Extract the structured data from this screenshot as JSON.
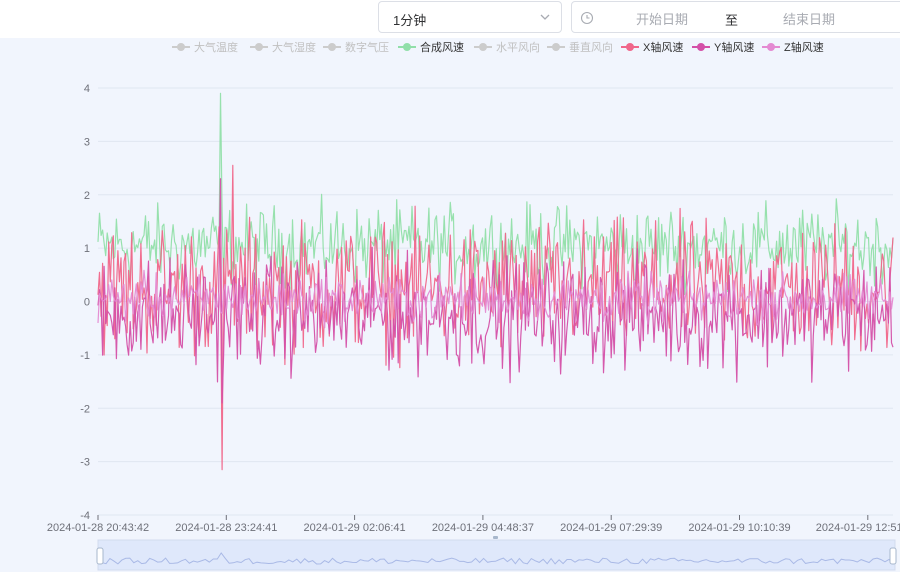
{
  "toolbar": {
    "interval_value": "1分钟",
    "range_start_placeholder": "开始日期",
    "range_separator": "至",
    "range_end_placeholder": "结束日期",
    "chevron_icon": "chevron-down-icon",
    "clock_icon": "clock-icon"
  },
  "chart_data": {
    "type": "line",
    "title": "",
    "xlabel": "",
    "ylabel": "",
    "ylim": [
      -4,
      4
    ],
    "y_ticks": [
      4,
      3,
      2,
      1,
      0,
      -1,
      -2,
      -3,
      -4
    ],
    "x_tick_labels": [
      "2024-01-28 20:43:42",
      "2024-01-28 23:24:41",
      "2024-01-29 02:06:41",
      "2024-01-29 04:48:37",
      "2024-01-29 07:29:39",
      "2024-01-29 10:10:39",
      "2024-01-29 12:51"
    ],
    "x_range": [
      "2024-01-28 20:43:42",
      "2024-01-29 12:51"
    ],
    "grid": true,
    "legend_position": "top",
    "legend": [
      {
        "name": "大气温度",
        "active": false,
        "color": "#cccccc"
      },
      {
        "name": "大气湿度",
        "active": false,
        "color": "#cccccc"
      },
      {
        "name": "数字气压",
        "active": false,
        "color": "#cccccc"
      },
      {
        "name": "合成风速",
        "active": true,
        "color": "#91dfa9"
      },
      {
        "name": "水平风向",
        "active": false,
        "color": "#cccccc"
      },
      {
        "name": "垂直风向",
        "active": false,
        "color": "#cccccc"
      },
      {
        "name": "X轴风速",
        "active": true,
        "color": "#f0668a"
      },
      {
        "name": "Y轴风速",
        "active": true,
        "color": "#d450a8"
      },
      {
        "name": "Z轴风速",
        "active": true,
        "color": "#e48ad2"
      }
    ],
    "series": [
      {
        "name": "合成风速",
        "color": "#91dfa9",
        "typical_range": [
          0.3,
          1.8
        ],
        "max": 3.9
      },
      {
        "name": "X轴风速",
        "color": "#f0668a",
        "typical_range": [
          -1.0,
          1.5
        ],
        "max": 2.55,
        "min": -3.15
      },
      {
        "name": "Y轴风速",
        "color": "#d450a8",
        "typical_range": [
          -1.3,
          0.8
        ],
        "max": 2.3,
        "min": -1.9
      },
      {
        "name": "Z轴风速",
        "color": "#e48ad2",
        "typical_range": [
          -0.4,
          0.5
        ]
      }
    ],
    "data_zoom": {
      "start": 0,
      "end": 100
    }
  }
}
